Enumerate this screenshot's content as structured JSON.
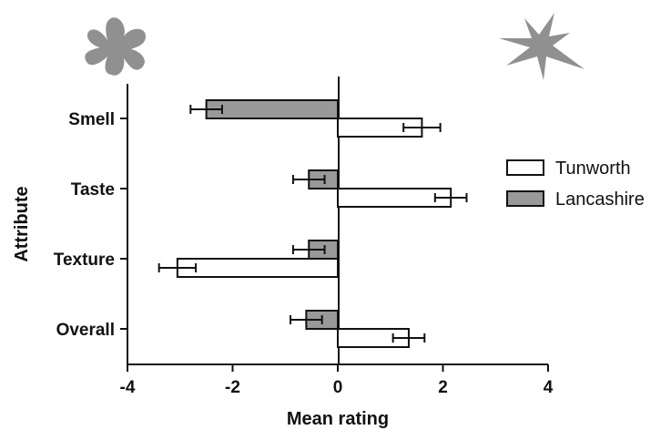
{
  "chart_data": {
    "type": "bar",
    "orientation": "horizontal",
    "categories": [
      "Smell",
      "Taste",
      "Texture",
      "Overall"
    ],
    "xlabel": "Mean rating",
    "ylabel": "Attribute",
    "xlim": [
      -4,
      4
    ],
    "xticks": [
      -4,
      -2,
      0,
      2,
      4
    ],
    "grid": false,
    "legend_position": "right",
    "series": [
      {
        "name": "Tunworth",
        "color": "#ffffff",
        "values": [
          1.6,
          2.15,
          -3.05,
          1.35
        ],
        "errors": [
          0.35,
          0.3,
          0.35,
          0.3
        ]
      },
      {
        "name": "Lancashire",
        "color": "#999999",
        "values": [
          -2.5,
          -0.55,
          -0.55,
          -0.6
        ],
        "errors": [
          0.3,
          0.3,
          0.3,
          0.3
        ]
      }
    ]
  },
  "decorations": {
    "left_icon": "flower-blob-icon",
    "right_icon": "star-burst-icon",
    "icon_color": "#909090"
  }
}
